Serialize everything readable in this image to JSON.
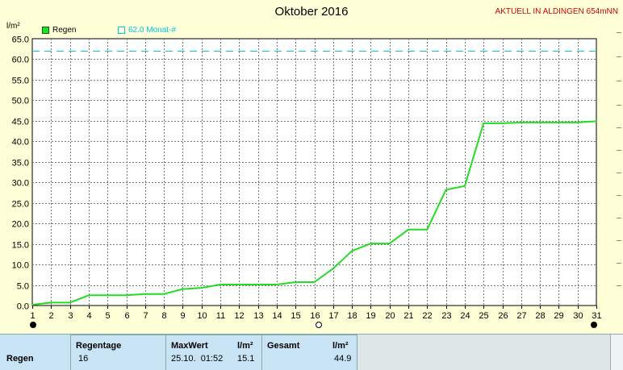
{
  "header": {
    "title": "Oktober 2016",
    "station": "AKTUELL IN ALDINGEN 654mNN"
  },
  "chart_data": {
    "type": "line",
    "title": "Oktober 2016",
    "ylabel": "l/m²",
    "ylim": [
      0,
      65
    ],
    "xlim": [
      1,
      31
    ],
    "y_ticks": [
      "0.0",
      "5.0",
      "10.0",
      "15.0",
      "20.0",
      "25.0",
      "30.0",
      "35.0",
      "40.0",
      "45.0",
      "50.0",
      "55.0",
      "60.0",
      "65.0"
    ],
    "x_ticks": [
      "1",
      "2",
      "3",
      "4",
      "5",
      "6",
      "7",
      "8",
      "9",
      "10",
      "11",
      "12",
      "13",
      "14",
      "15",
      "16",
      "17",
      "18",
      "19",
      "20",
      "21",
      "22",
      "23",
      "24",
      "25",
      "26",
      "27",
      "28",
      "29",
      "30",
      "31"
    ],
    "grid": true,
    "series": [
      {
        "name": "Regen",
        "color": "#22dd22",
        "x": [
          1,
          2,
          3,
          4,
          5,
          6,
          7,
          8,
          9,
          10,
          11,
          12,
          13,
          14,
          15,
          16,
          17,
          18,
          19,
          20,
          21,
          22,
          23,
          24,
          25,
          26,
          27,
          28,
          29,
          30,
          31
        ],
        "y": [
          0.2,
          0.7,
          0.7,
          2.5,
          2.5,
          2.5,
          2.8,
          2.8,
          4.0,
          4.3,
          5.1,
          5.1,
          5.1,
          5.1,
          5.7,
          5.7,
          9.0,
          13.3,
          15.1,
          15.1,
          18.5,
          18.5,
          28.2,
          29.1,
          44.4,
          44.4,
          44.6,
          44.6,
          44.6,
          44.6,
          44.9
        ]
      }
    ],
    "reference_line": {
      "name": "62.0 Monat-#",
      "value": 62.0,
      "color": "#00c8d8"
    }
  },
  "legend": {
    "regen_label": "Regen",
    "monat_label": "62.0 Monat-#"
  },
  "table": {
    "row_label": "Regen",
    "regentage_header": "Regentage",
    "regentage_value": "16",
    "maxwert_header": "MaxWert",
    "maxwert_unit": "l/m²",
    "maxwert_time": "25.10.  01:52",
    "maxwert_value": "15.1",
    "gesamt_header": "Gesamt",
    "gesamt_unit": "l/m²",
    "gesamt_value": "44.9"
  }
}
